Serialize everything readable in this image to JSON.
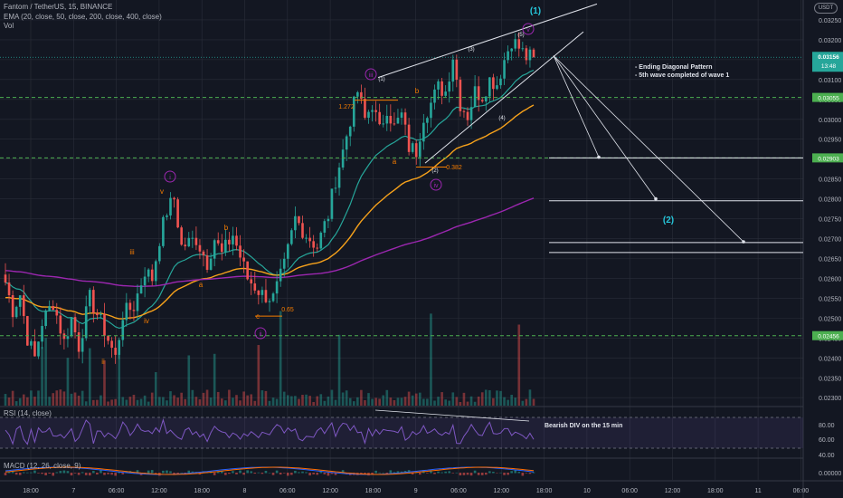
{
  "header": {
    "symbol_line": "Fantom / TetherUS, 15, BINANCE",
    "ema_line": "EMA (20, close, 50, close, 200, close, 400, close)",
    "vol_label": "Vol",
    "rsi_label": "RSI (14, close)",
    "macd_label": "MACD (12, 26, close, 9)",
    "currency": "USDT"
  },
  "colors": {
    "background": "#131722",
    "up": "#26a69a",
    "down": "#ef5350",
    "ema20": "#26a69a",
    "ema50": "#f7a21b",
    "ema200": "#9c27b0",
    "grid": "#2a2e39",
    "axis_text": "#b2b5be",
    "level_green": "#4caf50",
    "wave_purple": "#9c27b0",
    "wave_orange": "#f57c00",
    "wave_teal": "#26c6da",
    "white": "#e0e3eb",
    "macd": "#2962ff",
    "signal": "#ff6d00"
  },
  "chart_data": {
    "type": "candlestick",
    "y_ticks": [
      "0.03250",
      "0.03200",
      "0.03150",
      "0.03100",
      "0.03050",
      "0.03000",
      "0.02950",
      "0.02900",
      "0.02850",
      "0.02800",
      "0.02750",
      "0.02700",
      "0.02650",
      "0.02600",
      "0.02550",
      "0.02500",
      "0.02450",
      "0.02400",
      "0.02350",
      "0.02300"
    ],
    "x_ticks": [
      "18:00",
      "7",
      "06:00",
      "12:00",
      "18:00",
      "8",
      "06:00",
      "12:00",
      "18:00",
      "9",
      "06:00",
      "12:00",
      "18:00",
      "10",
      "06:00",
      "12:00",
      "18:00",
      "11",
      "06:00"
    ],
    "ylim": [
      0.0228,
      0.033
    ],
    "price_path": [
      [
        0,
        0.0259
      ],
      [
        2,
        0.0252
      ],
      [
        4,
        0.0256
      ],
      [
        6,
        0.0245
      ],
      [
        8,
        0.024
      ],
      [
        10,
        0.0249
      ],
      [
        13,
        0.0254
      ],
      [
        16,
        0.0244
      ],
      [
        18,
        0.025
      ],
      [
        20,
        0.0243
      ],
      [
        23,
        0.0255
      ],
      [
        27,
        0.0247
      ],
      [
        30,
        0.024
      ],
      [
        32,
        0.0251
      ],
      [
        35,
        0.0253
      ],
      [
        38,
        0.0262
      ],
      [
        40,
        0.026
      ],
      [
        42,
        0.027
      ],
      [
        44,
        0.0277
      ],
      [
        46,
        0.028
      ],
      [
        48,
        0.0268
      ],
      [
        52,
        0.027
      ],
      [
        55,
        0.0264
      ],
      [
        57,
        0.027
      ],
      [
        59,
        0.0266
      ],
      [
        62,
        0.0271
      ],
      [
        66,
        0.026
      ],
      [
        70,
        0.0256
      ],
      [
        73,
        0.0255
      ],
      [
        76,
        0.0263
      ],
      [
        79,
        0.0275
      ],
      [
        82,
        0.0271
      ],
      [
        85,
        0.0268
      ],
      [
        88,
        0.0276
      ],
      [
        90,
        0.0285
      ],
      [
        92,
        0.0292
      ],
      [
        94,
        0.03
      ],
      [
        96,
        0.0307
      ],
      [
        98,
        0.03
      ],
      [
        100,
        0.0304
      ],
      [
        102,
        0.0297
      ],
      [
        104,
        0.0303
      ],
      [
        106,
        0.0298
      ],
      [
        108,
        0.0301
      ],
      [
        110,
        0.0293
      ],
      [
        112,
        0.0292
      ],
      [
        114,
        0.0301
      ],
      [
        116,
        0.0304
      ],
      [
        118,
        0.0308
      ],
      [
        120,
        0.0307
      ],
      [
        122,
        0.0316
      ],
      [
        124,
        0.0304
      ],
      [
        126,
        0.0301
      ],
      [
        128,
        0.0307
      ],
      [
        130,
        0.0306
      ],
      [
        132,
        0.031
      ],
      [
        134,
        0.0309
      ],
      [
        136,
        0.0315
      ],
      [
        138,
        0.032
      ],
      [
        140,
        0.0318
      ],
      [
        142,
        0.03156
      ]
    ],
    "current_price": "0.03156",
    "countdown": "13:48",
    "price_labels": [
      {
        "value": 0.03055,
        "label": "0.03055"
      },
      {
        "value": 0.02903,
        "label": "0.02903"
      },
      {
        "value": 0.02456,
        "label": "0.02456"
      }
    ],
    "target_levels": [
      0.02903,
      0.02795,
      0.0269,
      0.02665
    ],
    "ema": {
      "periods": [
        20,
        50,
        200,
        400
      ]
    },
    "rsi": {
      "ticks": [
        "80.00",
        "60.00",
        "40.00"
      ],
      "upper": 70,
      "lower": 30
    },
    "macd": {
      "ticks": [
        "0.00000"
      ]
    },
    "wave_labels_purple": [
      "i",
      "ii",
      "iii",
      "iv",
      "v"
    ],
    "wave_labels_orange": [
      "v",
      "iii",
      "iv",
      "ii",
      "a",
      "b",
      "c",
      "a",
      "b"
    ],
    "wave_labels_white": [
      "(1)",
      "(2)",
      "(3)",
      "(4)",
      "(5)"
    ],
    "wave_labels_teal": [
      "(1)",
      "(2)"
    ],
    "fib_labels": [
      "1.272",
      "0.382",
      "0.65"
    ],
    "annotations": {
      "ending_diagonal_line1": "- Ending Diagonal Pattern",
      "ending_diagonal_line2": "- 5th wave completed of wave 1",
      "bearish_div": "Bearish DIV on the 15 min"
    }
  }
}
